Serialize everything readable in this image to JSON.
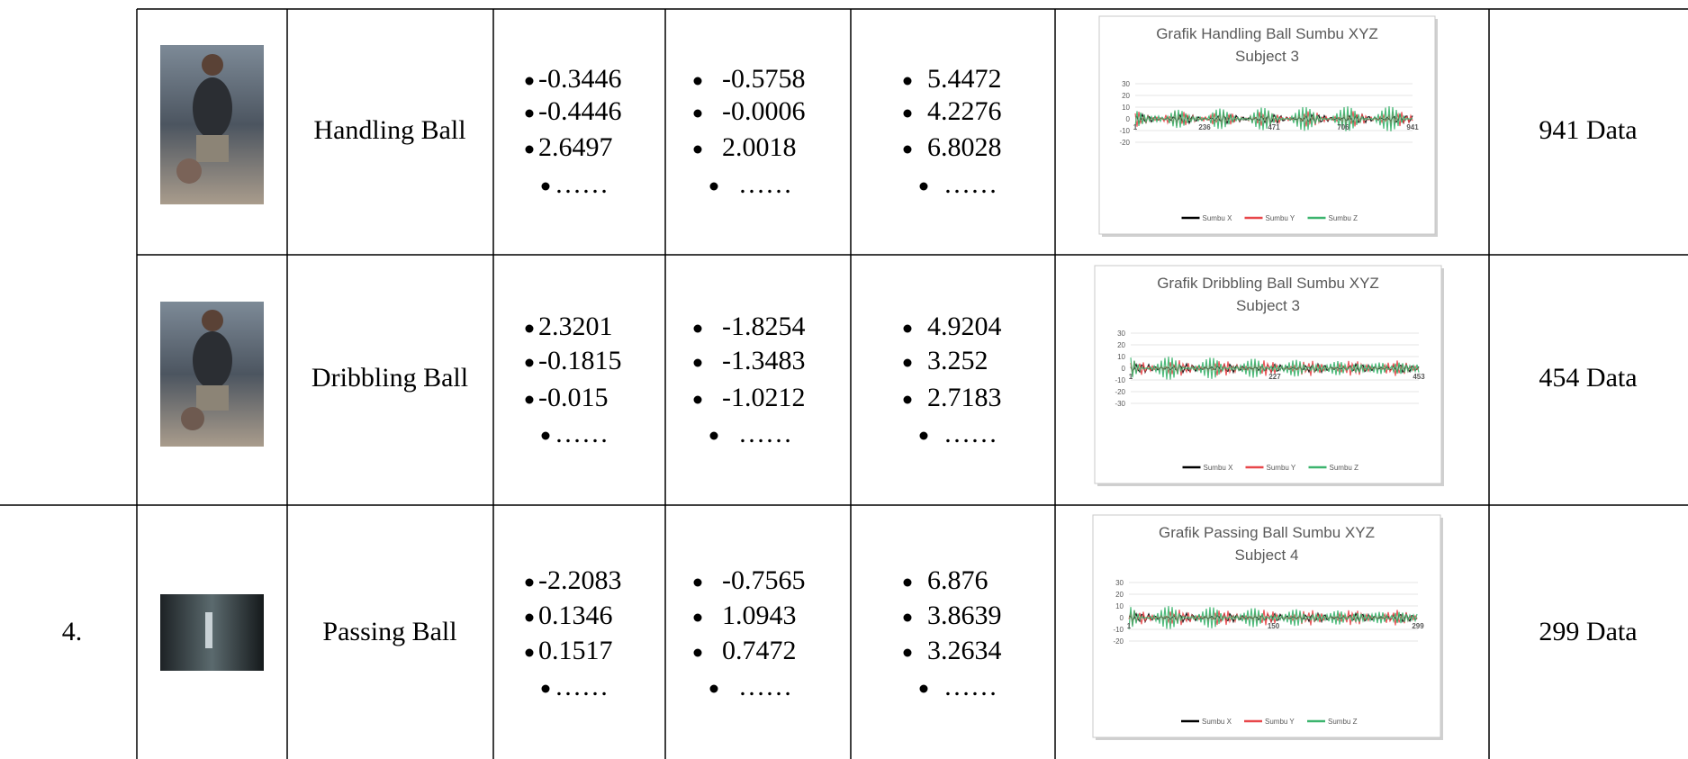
{
  "table": {
    "rows": [
      {
        "activity": "Handling Ball",
        "x": [
          "-0.3446",
          "-0.4446",
          "2.6497",
          "……"
        ],
        "y": [
          "-0.5758",
          "-0.0006",
          "2.0018",
          "……"
        ],
        "z": [
          "5.4472",
          "4.2276",
          "6.8028",
          "……"
        ],
        "chart": {
          "title": "Grafik Handling Ball Sumbu XYZ",
          "subtitle": "Subject 3",
          "yticks": [
            30,
            20,
            10,
            0,
            -10,
            -20
          ],
          "xticks": [
            "1",
            "236",
            "471",
            "706",
            "941"
          ],
          "legend": [
            {
              "name": "Sumbu X",
              "color": "#000000"
            },
            {
              "name": "Sumbu Y",
              "color": "#e8474a"
            },
            {
              "name": "Sumbu Z",
              "color": "#3cb46e"
            }
          ]
        },
        "count": "941 Data"
      },
      {
        "activity": "Dribbling Ball",
        "x": [
          "2.3201",
          "-0.1815",
          "-0.015",
          "……"
        ],
        "y": [
          "-1.8254",
          "-1.3483",
          "-1.0212",
          "……"
        ],
        "z": [
          "4.9204",
          "3.252",
          "2.7183",
          "……"
        ],
        "chart": {
          "title": "Grafik Dribbling Ball Sumbu XYZ",
          "subtitle": "Subject 3",
          "yticks": [
            30,
            20,
            10,
            0,
            -10,
            -20,
            -30
          ],
          "xticks": [
            "1",
            "227",
            "453"
          ],
          "legend": [
            {
              "name": "Sumbu X",
              "color": "#000000"
            },
            {
              "name": "Sumbu Y",
              "color": "#e8474a"
            },
            {
              "name": "Sumbu Z",
              "color": "#3cb46e"
            }
          ]
        },
        "count": "454 Data"
      },
      {
        "no": "4.",
        "activity": "Passing Ball",
        "x": [
          "-2.2083",
          "0.1346",
          "0.1517",
          "……"
        ],
        "y": [
          "-0.7565",
          "1.0943",
          "0.7472",
          "……"
        ],
        "z": [
          "6.876",
          "3.8639",
          "3.2634",
          "……"
        ],
        "chart": {
          "title": "Grafik Passing Ball Sumbu XYZ",
          "subtitle": "Subject 4",
          "yticks": [
            30,
            20,
            10,
            0,
            -10,
            -20
          ],
          "xticks": [
            "1",
            "150",
            "299"
          ],
          "legend": [
            {
              "name": "Sumbu X",
              "color": "#000000"
            },
            {
              "name": "Sumbu Y",
              "color": "#e8474a"
            },
            {
              "name": "Sumbu Z",
              "color": "#3cb46e"
            }
          ]
        },
        "count": "299 Data"
      }
    ]
  }
}
